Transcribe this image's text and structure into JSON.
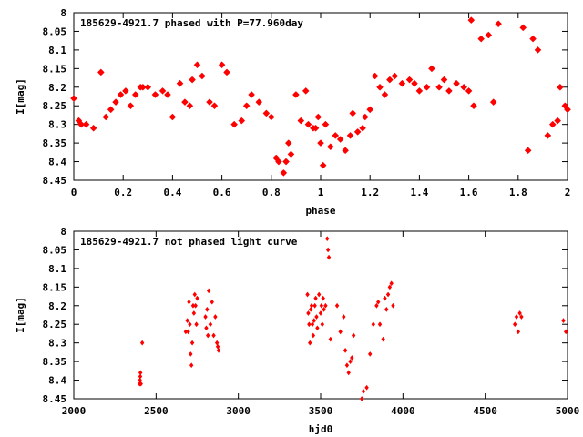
{
  "colors": {
    "points": "#ff0000",
    "axis": "#000000",
    "background": "#ffffff"
  },
  "chart_data": [
    {
      "type": "scatter",
      "title": "185629-4921.7 phased with P=77.960day",
      "xlabel": "phase",
      "ylabel": "I[mag]",
      "xlim": [
        0,
        2
      ],
      "ylim": [
        8.45,
        8.0
      ],
      "y_inverted": true,
      "xticks": [
        "0",
        "0.2",
        "0.4",
        "0.6",
        "0.8",
        "1",
        "1.2",
        "1.4",
        "1.6",
        "1.8",
        "2"
      ],
      "yticks": [
        "8",
        "8.05",
        "8.1",
        "8.15",
        "8.2",
        "8.25",
        "8.3",
        "8.35",
        "8.4",
        "8.45"
      ],
      "marker": "filled-star",
      "grid": false,
      "series": [
        {
          "x": [
            0.0,
            0.02,
            0.03,
            0.05,
            0.08,
            0.11,
            0.13,
            0.15,
            0.17,
            0.19,
            0.21,
            0.23,
            0.25,
            0.27,
            0.28,
            0.3,
            0.33,
            0.36,
            0.38,
            0.4,
            0.43,
            0.45,
            0.47,
            0.48,
            0.5,
            0.52,
            0.55,
            0.57,
            0.6,
            0.62,
            0.65,
            0.68,
            0.7,
            0.72,
            0.75,
            0.78,
            0.8,
            0.82,
            0.83,
            0.85,
            0.86,
            0.87,
            0.88,
            0.9,
            0.92,
            0.94,
            0.95,
            0.97,
            0.98,
            0.99,
            1.0,
            1.01,
            1.02,
            1.04,
            1.06,
            1.08,
            1.1,
            1.12,
            1.13,
            1.15,
            1.17,
            1.18,
            1.2,
            1.22,
            1.24,
            1.26,
            1.28,
            1.3,
            1.33,
            1.36,
            1.38,
            1.4,
            1.43,
            1.45,
            1.48,
            1.5,
            1.52,
            1.55,
            1.58,
            1.6,
            1.61,
            1.62,
            1.65,
            1.68,
            1.7,
            1.72,
            1.82,
            1.84,
            1.86,
            1.88,
            1.92,
            1.94,
            1.96,
            1.97,
            1.99,
            2.0
          ],
          "y": [
            8.23,
            8.29,
            8.3,
            8.3,
            8.31,
            8.16,
            8.28,
            8.26,
            8.24,
            8.22,
            8.21,
            8.25,
            8.22,
            8.2,
            8.2,
            8.2,
            8.22,
            8.21,
            8.22,
            8.28,
            8.19,
            8.24,
            8.25,
            8.18,
            8.14,
            8.17,
            8.24,
            8.25,
            8.14,
            8.16,
            8.3,
            8.29,
            8.25,
            8.22,
            8.24,
            8.27,
            8.28,
            8.39,
            8.4,
            8.43,
            8.4,
            8.35,
            8.38,
            8.22,
            8.29,
            8.21,
            8.3,
            8.31,
            8.31,
            8.28,
            8.35,
            8.41,
            8.3,
            8.36,
            8.33,
            8.34,
            8.37,
            8.33,
            8.27,
            8.32,
            8.31,
            8.28,
            8.26,
            8.17,
            8.2,
            8.22,
            8.18,
            8.17,
            8.19,
            8.18,
            8.19,
            8.21,
            8.2,
            8.15,
            8.2,
            8.18,
            8.21,
            8.19,
            8.2,
            8.21,
            8.02,
            8.25,
            8.07,
            8.06,
            8.24,
            8.03,
            8.04,
            8.37,
            8.07,
            8.1,
            8.33,
            8.3,
            8.29,
            8.2,
            8.25,
            8.26
          ]
        }
      ]
    },
    {
      "type": "scatter",
      "title": "185629-4921.7 not phased light curve",
      "xlabel": "hjd0",
      "ylabel": "I[mag]",
      "xlim": [
        2000,
        5000
      ],
      "ylim": [
        8.45,
        8.0
      ],
      "y_inverted": true,
      "xticks": [
        "2000",
        "2500",
        "3000",
        "3500",
        "4000",
        "4500",
        "5000"
      ],
      "yticks": [
        "8",
        "8.05",
        "8.1",
        "8.15",
        "8.2",
        "8.25",
        "8.3",
        "8.35",
        "8.4",
        "8.45"
      ],
      "marker": "small-diamond",
      "grid": false,
      "series": [
        {
          "x": [
            2400,
            2402,
            2404,
            2405,
            2408,
            2416,
            2680,
            2690,
            2695,
            2700,
            2705,
            2710,
            2715,
            2720,
            2725,
            2730,
            2735,
            2740,
            2745,
            2750,
            2800,
            2805,
            2810,
            2815,
            2820,
            2830,
            2840,
            2850,
            2860,
            2870,
            2875,
            2880,
            3420,
            3425,
            3430,
            3435,
            3440,
            3445,
            3450,
            3455,
            3460,
            3465,
            3470,
            3475,
            3480,
            3490,
            3500,
            3505,
            3510,
            3515,
            3520,
            3530,
            3540,
            3545,
            3550,
            3560,
            3600,
            3620,
            3640,
            3650,
            3660,
            3670,
            3680,
            3690,
            3700,
            3750,
            3760,
            3780,
            3800,
            3820,
            3840,
            3850,
            3860,
            3880,
            3890,
            3900,
            3910,
            3920,
            3930,
            3940,
            4680,
            4690,
            4700,
            4710,
            4720,
            4975,
            4990
          ],
          "y": [
            8.41,
            8.4,
            8.39,
            8.38,
            8.41,
            8.3,
            8.27,
            8.24,
            8.27,
            8.19,
            8.25,
            8.33,
            8.36,
            8.3,
            8.2,
            8.22,
            8.17,
            8.2,
            8.25,
            8.18,
            8.23,
            8.26,
            8.21,
            8.28,
            8.16,
            8.25,
            8.19,
            8.28,
            8.23,
            8.3,
            8.31,
            8.32,
            8.17,
            8.22,
            8.25,
            8.3,
            8.21,
            8.2,
            8.25,
            8.28,
            8.24,
            8.2,
            8.18,
            8.23,
            8.26,
            8.17,
            8.22,
            8.2,
            8.25,
            8.18,
            8.21,
            8.2,
            8.02,
            8.05,
            8.07,
            8.29,
            8.2,
            8.27,
            8.23,
            8.32,
            8.36,
            8.38,
            8.35,
            8.34,
            8.28,
            8.45,
            8.43,
            8.42,
            8.33,
            8.25,
            8.2,
            8.19,
            8.25,
            8.29,
            8.18,
            8.21,
            8.17,
            8.15,
            8.14,
            8.2,
            8.25,
            8.23,
            8.27,
            8.22,
            8.23,
            8.24,
            8.27
          ]
        }
      ]
    }
  ]
}
